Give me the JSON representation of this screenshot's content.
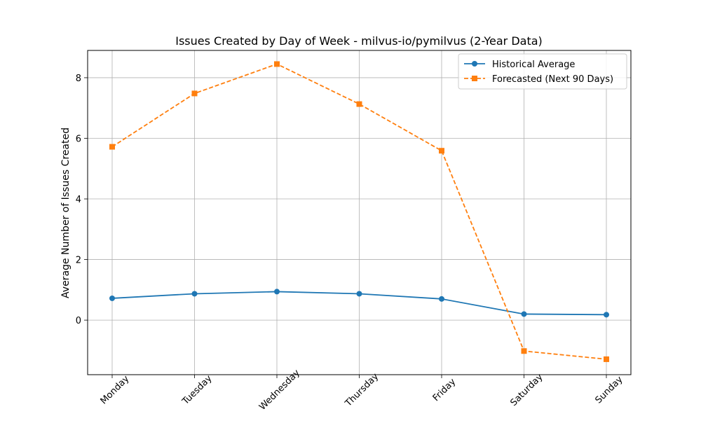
{
  "chart_data": {
    "type": "line",
    "title": "Issues Created by Day of Week - milvus-io/pymilvus (2-Year Data)",
    "xlabel": "",
    "ylabel": "Average Number of Issues Created",
    "categories": [
      "Monday",
      "Tuesday",
      "Wednesday",
      "Thursday",
      "Friday",
      "Saturday",
      "Sunday"
    ],
    "ylim": [
      -1.8,
      8.9
    ],
    "yticks": [
      0,
      2,
      4,
      6,
      8
    ],
    "grid": true,
    "legend_position": "top-right",
    "series": [
      {
        "name": "Historical Average",
        "values": [
          0.72,
          0.87,
          0.94,
          0.87,
          0.7,
          0.2,
          0.18
        ],
        "color": "#1f77b4",
        "line_style": "solid",
        "marker": "circle"
      },
      {
        "name": "Forecasted (Next 90 Days)",
        "values": [
          5.72,
          7.48,
          8.45,
          7.13,
          5.59,
          -1.02,
          -1.29
        ],
        "color": "#ff7f0e",
        "line_style": "dashed",
        "marker": "square"
      }
    ]
  }
}
